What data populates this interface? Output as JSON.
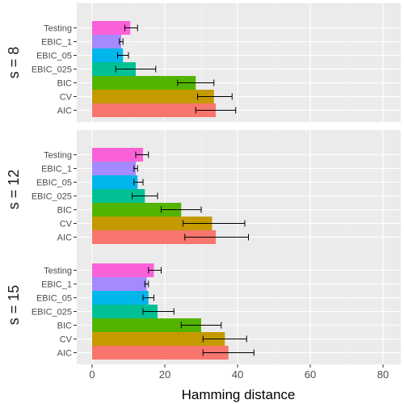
{
  "chart_data": {
    "type": "bar",
    "orientation": "horizontal",
    "xlabel": "Hamming distance",
    "xlim": [
      0,
      80
    ],
    "xticks": [
      "0",
      "20",
      "40",
      "60",
      "80"
    ],
    "grid": true,
    "categories": [
      "AIC",
      "CV",
      "BIC",
      "EBIC_025",
      "EBIC_05",
      "EBIC_1",
      "Testing"
    ],
    "colors": {
      "AIC": "#F8766D",
      "CV": "#C49A00",
      "BIC": "#53B400",
      "EBIC_025": "#00C094",
      "EBIC_05": "#00B6EB",
      "EBIC_1": "#A58AFF",
      "Testing": "#FB61D7"
    },
    "panels": [
      {
        "label": "s = 8",
        "values": [
          34,
          33.5,
          28.5,
          12,
          8.5,
          8,
          10.5
        ],
        "errors": [
          [
            28.5,
            39.5
          ],
          [
            29,
            38.5
          ],
          [
            23.5,
            33.5
          ],
          [
            6.5,
            17.5
          ],
          [
            7,
            10
          ],
          [
            7.5,
            8.5
          ],
          [
            9,
            12.5
          ]
        ]
      },
      {
        "label": "s = 12",
        "values": [
          34,
          33,
          24.5,
          14.5,
          12.5,
          12,
          14
        ],
        "errors": [
          [
            25.5,
            43
          ],
          [
            25,
            42
          ],
          [
            19,
            30
          ],
          [
            11,
            18
          ],
          [
            11.5,
            14
          ],
          [
            11.5,
            12.5
          ],
          [
            12,
            15.5
          ]
        ]
      },
      {
        "label": "s = 15",
        "values": [
          37.5,
          36.5,
          30,
          18,
          15.5,
          15,
          17
        ],
        "errors": [
          [
            30.5,
            44.5
          ],
          [
            30.5,
            42.5
          ],
          [
            24.5,
            35.5
          ],
          [
            14,
            22.5
          ],
          [
            14,
            17
          ],
          [
            14.5,
            15.5
          ],
          [
            15.5,
            19
          ]
        ]
      }
    ]
  }
}
